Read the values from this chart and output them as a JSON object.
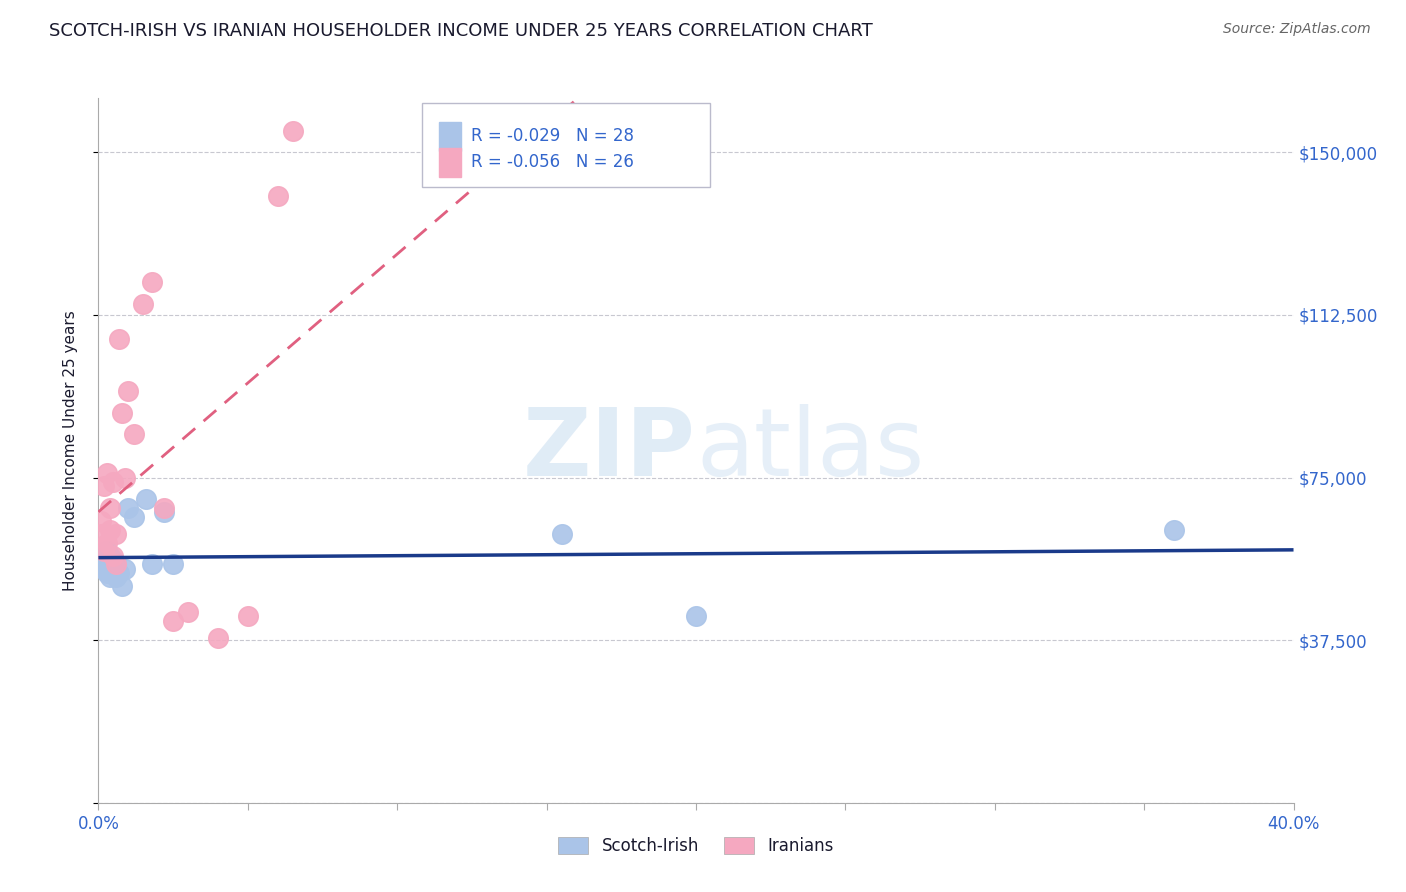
{
  "title": "SCOTCH-IRISH VS IRANIAN HOUSEHOLDER INCOME UNDER 25 YEARS CORRELATION CHART",
  "source": "Source: ZipAtlas.com",
  "ylabel": "Householder Income Under 25 years",
  "xlabel": "",
  "xlim": [
    0.0,
    0.4
  ],
  "ylim": [
    0,
    162500
  ],
  "yticks": [
    0,
    37500,
    75000,
    112500,
    150000
  ],
  "ytick_labels": [
    "",
    "$37,500",
    "$75,000",
    "$112,500",
    "$150,000"
  ],
  "xticks": [
    0.0,
    0.05,
    0.1,
    0.15,
    0.2,
    0.25,
    0.3,
    0.35,
    0.4
  ],
  "xtick_labels": [
    "0.0%",
    "",
    "",
    "",
    "",
    "",
    "",
    "",
    "40.0%"
  ],
  "grid_color": "#c8c8d0",
  "background_color": "#ffffff",
  "scotch_irish_color": "#aac4e8",
  "iranian_color": "#f5a8c0",
  "scotch_irish_line_color": "#1a3a8a",
  "iranian_line_color": "#e06080",
  "scotch_irish_R": -0.029,
  "scotch_irish_N": 28,
  "iranian_R": -0.056,
  "iranian_N": 26,
  "legend_scotch_label": "Scotch-Irish",
  "legend_iranian_label": "Iranians",
  "watermark_zip": "ZIP",
  "watermark_atlas": "atlas",
  "title_color": "#1a1a2e",
  "axis_color": "#3366cc",
  "scotch_irish_x": [
    0.001,
    0.001,
    0.002,
    0.002,
    0.002,
    0.003,
    0.003,
    0.003,
    0.003,
    0.004,
    0.004,
    0.004,
    0.005,
    0.005,
    0.006,
    0.006,
    0.007,
    0.008,
    0.009,
    0.01,
    0.012,
    0.016,
    0.018,
    0.022,
    0.025,
    0.155,
    0.2,
    0.36
  ],
  "scotch_irish_y": [
    57000,
    55000,
    55000,
    54000,
    57000,
    53000,
    55000,
    56000,
    58000,
    52000,
    55000,
    57000,
    54000,
    56000,
    52000,
    55000,
    53000,
    50000,
    54000,
    68000,
    66000,
    70000,
    55000,
    67000,
    55000,
    62000,
    43000,
    63000
  ],
  "iranian_x": [
    0.001,
    0.001,
    0.002,
    0.002,
    0.003,
    0.003,
    0.004,
    0.004,
    0.005,
    0.005,
    0.006,
    0.006,
    0.007,
    0.008,
    0.009,
    0.01,
    0.012,
    0.015,
    0.018,
    0.022,
    0.025,
    0.03,
    0.04,
    0.05,
    0.06,
    0.065
  ],
  "iranian_y": [
    62000,
    65000,
    58000,
    73000,
    60000,
    76000,
    63000,
    68000,
    57000,
    74000,
    55000,
    62000,
    107000,
    90000,
    75000,
    95000,
    85000,
    115000,
    120000,
    68000,
    42000,
    44000,
    38000,
    43000,
    140000,
    155000
  ]
}
